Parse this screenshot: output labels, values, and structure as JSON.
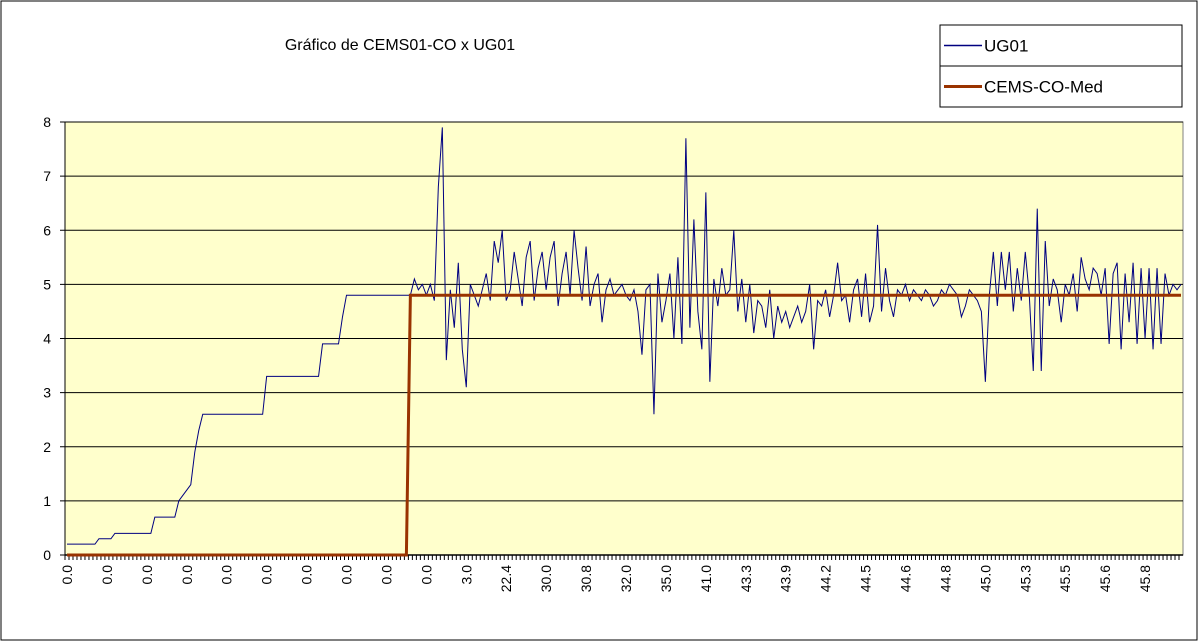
{
  "chart_data": {
    "type": "line",
    "title": "Gráfico de CEMS01-CO x UG01",
    "categories": [
      "0.0",
      null,
      null,
      null,
      null,
      null,
      null,
      null,
      null,
      null,
      "0.0",
      null,
      null,
      null,
      null,
      null,
      null,
      null,
      null,
      null,
      "0.0",
      null,
      null,
      null,
      null,
      null,
      null,
      null,
      null,
      null,
      "0.0",
      null,
      null,
      null,
      null,
      null,
      null,
      null,
      null,
      null,
      "0.0",
      null,
      null,
      null,
      null,
      null,
      null,
      null,
      null,
      null,
      "0.0",
      null,
      null,
      null,
      null,
      null,
      null,
      null,
      null,
      null,
      "0.0",
      null,
      null,
      null,
      null,
      null,
      null,
      null,
      null,
      null,
      "0.0",
      null,
      null,
      null,
      null,
      null,
      null,
      null,
      null,
      null,
      "0.0",
      null,
      null,
      null,
      null,
      null,
      null,
      null,
      null,
      null,
      "0.0",
      null,
      null,
      null,
      null,
      null,
      null,
      null,
      null,
      null,
      "3.0",
      null,
      null,
      null,
      null,
      null,
      null,
      null,
      null,
      null,
      "22.4",
      null,
      null,
      null,
      null,
      null,
      null,
      null,
      null,
      null,
      "30.0",
      null,
      null,
      null,
      null,
      null,
      null,
      null,
      null,
      null,
      "30.8",
      null,
      null,
      null,
      null,
      null,
      null,
      null,
      null,
      null,
      "32.0",
      null,
      null,
      null,
      null,
      null,
      null,
      null,
      null,
      null,
      "35.0",
      null,
      null,
      null,
      null,
      null,
      null,
      null,
      null,
      null,
      "41.0",
      null,
      null,
      null,
      null,
      null,
      null,
      null,
      null,
      null,
      "43.3",
      null,
      null,
      null,
      null,
      null,
      null,
      null,
      null,
      null,
      "43.9",
      null,
      null,
      null,
      null,
      null,
      null,
      null,
      null,
      null,
      "44.2",
      null,
      null,
      null,
      null,
      null,
      null,
      null,
      null,
      null,
      "44.5",
      null,
      null,
      null,
      null,
      null,
      null,
      null,
      null,
      null,
      "44.6",
      null,
      null,
      null,
      null,
      null,
      null,
      null,
      null,
      null,
      "44.8",
      null,
      null,
      null,
      null,
      null,
      null,
      null,
      null,
      null,
      "45.0",
      null,
      null,
      null,
      null,
      null,
      null,
      null,
      null,
      null,
      "45.3",
      null,
      null,
      null,
      null,
      null,
      null,
      null,
      null,
      null,
      "45.5",
      null,
      null,
      null,
      null,
      null,
      null,
      null,
      null,
      null,
      "45.6",
      null,
      null,
      null,
      null,
      null,
      null,
      null,
      null,
      null,
      "45.8",
      null,
      null,
      null,
      null,
      null,
      null,
      null,
      null,
      null
    ],
    "series": [
      {
        "name": "UG01",
        "color": "#000080",
        "values": [
          0.2,
          0.2,
          0.2,
          0.2,
          0.2,
          0.2,
          0.2,
          0.2,
          0.3,
          0.3,
          0.3,
          0.3,
          0.4,
          0.4,
          0.4,
          0.4,
          0.4,
          0.4,
          0.4,
          0.4,
          0.4,
          0.4,
          0.7,
          0.7,
          0.7,
          0.7,
          0.7,
          0.7,
          1.0,
          1.1,
          1.2,
          1.3,
          1.9,
          2.3,
          2.6,
          2.6,
          2.6,
          2.6,
          2.6,
          2.6,
          2.6,
          2.6,
          2.6,
          2.6,
          2.6,
          2.6,
          2.6,
          2.6,
          2.6,
          2.6,
          3.3,
          3.3,
          3.3,
          3.3,
          3.3,
          3.3,
          3.3,
          3.3,
          3.3,
          3.3,
          3.3,
          3.3,
          3.3,
          3.3,
          3.9,
          3.9,
          3.9,
          3.9,
          3.9,
          4.4,
          4.8,
          4.8,
          4.8,
          4.8,
          4.8,
          4.8,
          4.8,
          4.8,
          4.8,
          4.8,
          4.8,
          4.8,
          4.8,
          4.8,
          4.8,
          4.8,
          4.8,
          5.1,
          4.9,
          5.0,
          4.8,
          5.0,
          4.7,
          6.8,
          7.9,
          3.6,
          4.9,
          4.2,
          5.4,
          3.8,
          3.1,
          5.0,
          4.8,
          4.6,
          4.9,
          5.2,
          4.7,
          5.8,
          5.4,
          6.0,
          4.7,
          4.9,
          5.6,
          5.1,
          4.6,
          5.5,
          5.8,
          4.7,
          5.3,
          5.6,
          4.9,
          5.5,
          5.8,
          4.6,
          5.2,
          5.6,
          4.8,
          6.0,
          5.3,
          4.7,
          5.7,
          4.6,
          5.0,
          5.2,
          4.3,
          4.9,
          5.1,
          4.8,
          4.9,
          5.0,
          4.8,
          4.7,
          4.9,
          4.5,
          3.7,
          4.9,
          5.0,
          2.6,
          5.2,
          4.3,
          4.7,
          5.2,
          4.0,
          5.5,
          3.9,
          7.7,
          4.2,
          6.2,
          4.5,
          3.8,
          6.7,
          3.2,
          5.1,
          4.6,
          5.3,
          4.8,
          4.9,
          6.0,
          4.5,
          5.1,
          4.3,
          5.0,
          4.1,
          4.7,
          4.6,
          4.2,
          4.9,
          4.0,
          4.6,
          4.3,
          4.5,
          4.2,
          4.4,
          4.6,
          4.3,
          4.5,
          5.0,
          3.8,
          4.7,
          4.6,
          4.9,
          4.4,
          4.8,
          5.4,
          4.7,
          4.8,
          4.3,
          4.9,
          5.1,
          4.4,
          5.2,
          4.3,
          4.6,
          6.1,
          4.5,
          5.3,
          4.7,
          4.4,
          4.9,
          4.8,
          5.0,
          4.7,
          4.9,
          4.8,
          4.7,
          4.9,
          4.8,
          4.6,
          4.7,
          4.9,
          4.8,
          5.0,
          4.9,
          4.8,
          4.4,
          4.6,
          4.9,
          4.8,
          4.7,
          4.5,
          3.2,
          4.8,
          5.6,
          4.6,
          5.6,
          4.9,
          5.6,
          4.5,
          5.3,
          4.7,
          5.6,
          4.8,
          3.4,
          6.4,
          3.4,
          5.8,
          4.6,
          5.1,
          4.9,
          4.3,
          5.0,
          4.8,
          5.2,
          4.5,
          5.5,
          5.1,
          4.9,
          5.3,
          5.2,
          4.8,
          5.3,
          3.9,
          5.2,
          5.4,
          3.8,
          5.2,
          4.3,
          5.4,
          3.9,
          5.3,
          4.0,
          5.3,
          3.8,
          5.3,
          3.9,
          5.2,
          4.8,
          5.0,
          4.9,
          5.0
        ]
      },
      {
        "name": "CEMS-CO-Med",
        "color": "#993300",
        "values": [
          0,
          0,
          0,
          0,
          0,
          0,
          0,
          0,
          0,
          0,
          0,
          0,
          0,
          0,
          0,
          0,
          0,
          0,
          0,
          0,
          0,
          0,
          0,
          0,
          0,
          0,
          0,
          0,
          0,
          0,
          0,
          0,
          0,
          0,
          0,
          0,
          0,
          0,
          0,
          0,
          0,
          0,
          0,
          0,
          0,
          0,
          0,
          0,
          0,
          0,
          0,
          0,
          0,
          0,
          0,
          0,
          0,
          0,
          0,
          0,
          0,
          0,
          0,
          0,
          0,
          0,
          0,
          0,
          0,
          0,
          0,
          0,
          0,
          0,
          0,
          0,
          0,
          0,
          0,
          0,
          0,
          0,
          0,
          0,
          0,
          0,
          4.8,
          4.8,
          4.8,
          4.8,
          4.8,
          4.8,
          4.8,
          4.8,
          4.8,
          4.8,
          4.8,
          4.8,
          4.8,
          4.8,
          4.8,
          4.8,
          4.8,
          4.8,
          4.8,
          4.8,
          4.8,
          4.8,
          4.8,
          4.8,
          4.8,
          4.8,
          4.8,
          4.8,
          4.8,
          4.8,
          4.8,
          4.8,
          4.8,
          4.8,
          4.8,
          4.8,
          4.8,
          4.8,
          4.8,
          4.8,
          4.8,
          4.8,
          4.8,
          4.8,
          4.8,
          4.8,
          4.8,
          4.8,
          4.8,
          4.8,
          4.8,
          4.8,
          4.8,
          4.8,
          4.8,
          4.8,
          4.8,
          4.8,
          4.8,
          4.8,
          4.8,
          4.8,
          4.8,
          4.8,
          4.8,
          4.8,
          4.8,
          4.8,
          4.8,
          4.8,
          4.8,
          4.8,
          4.8,
          4.8,
          4.8,
          4.8,
          4.8,
          4.8,
          4.8,
          4.8,
          4.8,
          4.8,
          4.8,
          4.8,
          4.8,
          4.8,
          4.8,
          4.8,
          4.8,
          4.8,
          4.8,
          4.8,
          4.8,
          4.8,
          4.8,
          4.8,
          4.8,
          4.8,
          4.8,
          4.8,
          4.8,
          4.8,
          4.8,
          4.8,
          4.8,
          4.8,
          4.8,
          4.8,
          4.8,
          4.8,
          4.8,
          4.8,
          4.8,
          4.8,
          4.8,
          4.8,
          4.8,
          4.8,
          4.8,
          4.8,
          4.8,
          4.8,
          4.8,
          4.8,
          4.8,
          4.8,
          4.8,
          4.8,
          4.8,
          4.8,
          4.8,
          4.8,
          4.8,
          4.8,
          4.8,
          4.8,
          4.8,
          4.8,
          4.8,
          4.8,
          4.8,
          4.8,
          4.8,
          4.8,
          4.8,
          4.8,
          4.8,
          4.8,
          4.8,
          4.8,
          4.8,
          4.8,
          4.8,
          4.8,
          4.8,
          4.8,
          4.8,
          4.8,
          4.8,
          4.8,
          4.8,
          4.8,
          4.8,
          4.8,
          4.8,
          4.8,
          4.8,
          4.8,
          4.8,
          4.8,
          4.8,
          4.8,
          4.8,
          4.8,
          4.8,
          4.8,
          4.8,
          4.8,
          4.8,
          4.8,
          4.8,
          4.8,
          4.8,
          4.8,
          4.8,
          4.8,
          4.8,
          4.8,
          4.8,
          4.8,
          4.8,
          4.8,
          4.8,
          4.8
        ]
      }
    ],
    "ylim": [
      0,
      8
    ],
    "yticks": [
      0,
      1,
      2,
      3,
      4,
      5,
      6,
      7,
      8
    ],
    "grid": true,
    "legend": "top-right",
    "plot_background": "#ffffcc"
  }
}
